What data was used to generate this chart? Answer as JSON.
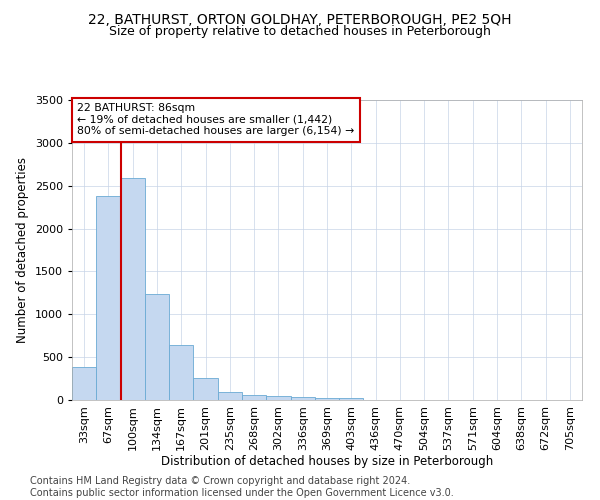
{
  "title": "22, BATHURST, ORTON GOLDHAY, PETERBOROUGH, PE2 5QH",
  "subtitle": "Size of property relative to detached houses in Peterborough",
  "xlabel": "Distribution of detached houses by size in Peterborough",
  "ylabel": "Number of detached properties",
  "categories": [
    "33sqm",
    "67sqm",
    "100sqm",
    "134sqm",
    "167sqm",
    "201sqm",
    "235sqm",
    "268sqm",
    "302sqm",
    "336sqm",
    "369sqm",
    "403sqm",
    "436sqm",
    "470sqm",
    "504sqm",
    "537sqm",
    "571sqm",
    "604sqm",
    "638sqm",
    "672sqm",
    "705sqm"
  ],
  "values": [
    390,
    2380,
    2590,
    1240,
    640,
    255,
    95,
    55,
    50,
    38,
    28,
    20,
    0,
    0,
    0,
    0,
    0,
    0,
    0,
    0,
    0
  ],
  "bar_color": "#c5d8f0",
  "bar_edge_color": "#6aaad4",
  "annotation_box_text": "22 BATHURST: 86sqm\n← 19% of detached houses are smaller (1,442)\n80% of semi-detached houses are larger (6,154) →",
  "vline_x_index": 2,
  "vline_color": "#cc0000",
  "ylim": [
    0,
    3500
  ],
  "yticks": [
    0,
    500,
    1000,
    1500,
    2000,
    2500,
    3000,
    3500
  ],
  "footnote": "Contains HM Land Registry data © Crown copyright and database right 2024.\nContains public sector information licensed under the Open Government Licence v3.0.",
  "title_fontsize": 10,
  "subtitle_fontsize": 9,
  "xlabel_fontsize": 8.5,
  "ylabel_fontsize": 8.5,
  "tick_fontsize": 8,
  "footnote_fontsize": 7,
  "background_color": "#ffffff",
  "grid_color": "#c8d4e8"
}
